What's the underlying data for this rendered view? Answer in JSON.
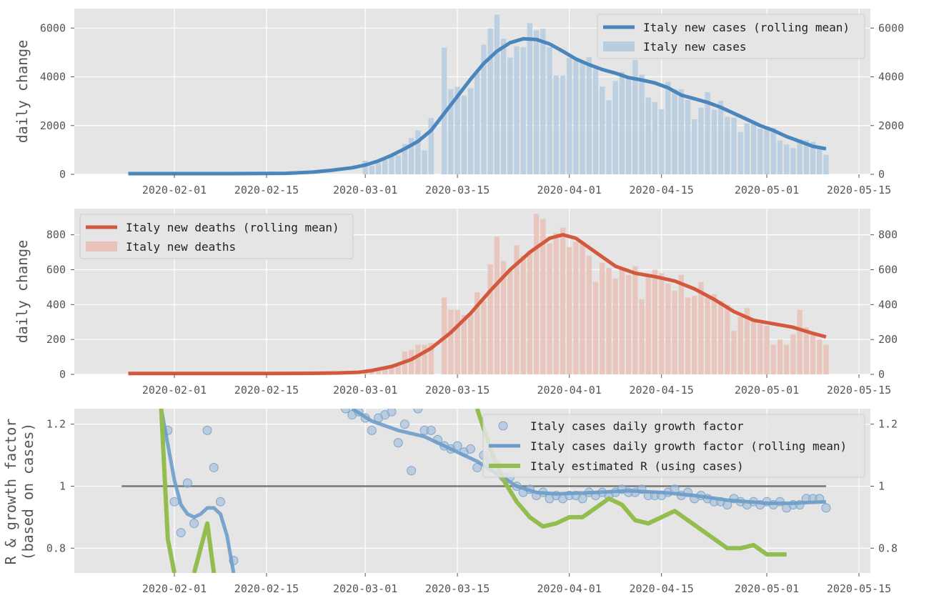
{
  "chart_data": [
    {
      "type": "bar",
      "ylabel": "daily change",
      "date_ticks": [
        "2020-02-01",
        "2020-02-15",
        "2020-03-01",
        "2020-03-15",
        "2020-04-01",
        "2020-04-15",
        "2020-05-01",
        "2020-05-15"
      ],
      "yticks": [
        0,
        2000,
        4000,
        6000
      ],
      "ylim": [
        0,
        6800
      ],
      "grid": true,
      "legend": "top-right",
      "colors": {
        "line": "#4a86bc",
        "bar": "#b8cde0"
      },
      "series": [
        {
          "name": "Italy new cases",
          "x": [
            "2020-03-01",
            "2020-03-02",
            "2020-03-03",
            "2020-03-04",
            "2020-03-05",
            "2020-03-06",
            "2020-03-07",
            "2020-03-08",
            "2020-03-09",
            "2020-03-10",
            "2020-03-11",
            "2020-03-12",
            "2020-03-13",
            "2020-03-14",
            "2020-03-15",
            "2020-03-16",
            "2020-03-17",
            "2020-03-18",
            "2020-03-19",
            "2020-03-20",
            "2020-03-21",
            "2020-03-22",
            "2020-03-23",
            "2020-03-24",
            "2020-03-25",
            "2020-03-26",
            "2020-03-27",
            "2020-03-28",
            "2020-03-29",
            "2020-03-30",
            "2020-03-31",
            "2020-04-01",
            "2020-04-02",
            "2020-04-03",
            "2020-04-04",
            "2020-04-05",
            "2020-04-06",
            "2020-04-07",
            "2020-04-08",
            "2020-04-09",
            "2020-04-10",
            "2020-04-11",
            "2020-04-12",
            "2020-04-13",
            "2020-04-14",
            "2020-04-15",
            "2020-04-16",
            "2020-04-17",
            "2020-04-18",
            "2020-04-19",
            "2020-04-20",
            "2020-04-21",
            "2020-04-22",
            "2020-04-23",
            "2020-04-24",
            "2020-04-25",
            "2020-04-26",
            "2020-04-27",
            "2020-04-28",
            "2020-04-29",
            "2020-04-30",
            "2020-05-01",
            "2020-05-02",
            "2020-05-03",
            "2020-05-04",
            "2020-05-05",
            "2020-05-06",
            "2020-05-07",
            "2020-05-08",
            "2020-05-09",
            "2020-05-10"
          ],
          "values": [
            560,
            350,
            470,
            590,
            770,
            780,
            1250,
            1490,
            1800,
            980,
            2310,
            0,
            5200,
            3500,
            3590,
            3230,
            3530,
            4200,
            5320,
            5990,
            6550,
            5570,
            4790,
            5250,
            5210,
            6200,
            5910,
            5970,
            5220,
            4050,
            4050,
            4780,
            4670,
            4580,
            4800,
            4320,
            3600,
            3040,
            3830,
            4200,
            3950,
            4690,
            4090,
            3150,
            2970,
            2670,
            3790,
            3490,
            3490,
            3050,
            2260,
            2730,
            3370,
            2650,
            3020,
            2360,
            2320,
            1740,
            2090,
            2090,
            1870,
            1970,
            1900,
            1390,
            1220,
            1080,
            1440,
            1400,
            1330,
            1080,
            800
          ]
        },
        {
          "name": "Italy new cases (rolling mean)",
          "x": [
            "2020-01-25",
            "2020-02-10",
            "2020-02-18",
            "2020-02-22",
            "2020-02-25",
            "2020-02-28",
            "2020-03-01",
            "2020-03-03",
            "2020-03-05",
            "2020-03-07",
            "2020-03-09",
            "2020-03-11",
            "2020-03-13",
            "2020-03-15",
            "2020-03-17",
            "2020-03-19",
            "2020-03-21",
            "2020-03-23",
            "2020-03-25",
            "2020-03-27",
            "2020-03-29",
            "2020-03-31",
            "2020-04-02",
            "2020-04-04",
            "2020-04-06",
            "2020-04-08",
            "2020-04-10",
            "2020-04-12",
            "2020-04-14",
            "2020-04-16",
            "2020-04-18",
            "2020-04-20",
            "2020-04-22",
            "2020-04-24",
            "2020-04-26",
            "2020-04-28",
            "2020-04-30",
            "2020-05-02",
            "2020-05-04",
            "2020-05-06",
            "2020-05-08",
            "2020-05-10"
          ],
          "values": [
            30,
            30,
            40,
            90,
            170,
            270,
            380,
            550,
            780,
            1050,
            1350,
            1800,
            2500,
            3200,
            3900,
            4550,
            5050,
            5400,
            5560,
            5530,
            5350,
            5050,
            4730,
            4500,
            4300,
            4150,
            3970,
            3870,
            3750,
            3550,
            3250,
            3100,
            2950,
            2750,
            2500,
            2250,
            2000,
            1800,
            1550,
            1350,
            1150,
            1050
          ]
        }
      ]
    },
    {
      "type": "bar",
      "ylabel": "daily change",
      "date_ticks": [
        "2020-02-01",
        "2020-02-15",
        "2020-03-01",
        "2020-03-15",
        "2020-04-01",
        "2020-04-15",
        "2020-05-01",
        "2020-05-15"
      ],
      "yticks": [
        0,
        200,
        400,
        600,
        800
      ],
      "ylim": [
        0,
        950
      ],
      "grid": true,
      "legend": "top-left",
      "colors": {
        "line": "#d2593d",
        "bar": "#e8c2b8"
      },
      "series": [
        {
          "name": "Italy new deaths",
          "x": [
            "2020-03-01",
            "2020-03-02",
            "2020-03-03",
            "2020-03-04",
            "2020-03-05",
            "2020-03-06",
            "2020-03-07",
            "2020-03-08",
            "2020-03-09",
            "2020-03-10",
            "2020-03-11",
            "2020-03-12",
            "2020-03-13",
            "2020-03-14",
            "2020-03-15",
            "2020-03-16",
            "2020-03-17",
            "2020-03-18",
            "2020-03-19",
            "2020-03-20",
            "2020-03-21",
            "2020-03-22",
            "2020-03-23",
            "2020-03-24",
            "2020-03-25",
            "2020-03-26",
            "2020-03-27",
            "2020-03-28",
            "2020-03-29",
            "2020-03-30",
            "2020-03-31",
            "2020-04-01",
            "2020-04-02",
            "2020-04-03",
            "2020-04-04",
            "2020-04-05",
            "2020-04-06",
            "2020-04-07",
            "2020-04-08",
            "2020-04-09",
            "2020-04-10",
            "2020-04-11",
            "2020-04-12",
            "2020-04-13",
            "2020-04-14",
            "2020-04-15",
            "2020-04-16",
            "2020-04-17",
            "2020-04-18",
            "2020-04-19",
            "2020-04-20",
            "2020-04-21",
            "2020-04-22",
            "2020-04-23",
            "2020-04-24",
            "2020-04-25",
            "2020-04-26",
            "2020-04-27",
            "2020-04-28",
            "2020-04-29",
            "2020-04-30",
            "2020-05-01",
            "2020-05-02",
            "2020-05-03",
            "2020-05-04",
            "2020-05-05",
            "2020-05-06",
            "2020-05-07",
            "2020-05-08",
            "2020-05-09",
            "2020-05-10"
          ],
          "values": [
            10,
            20,
            30,
            40,
            50,
            60,
            130,
            140,
            170,
            170,
            180,
            0,
            440,
            370,
            370,
            340,
            350,
            470,
            420,
            630,
            790,
            650,
            600,
            740,
            680,
            710,
            920,
            890,
            750,
            810,
            840,
            730,
            760,
            760,
            680,
            530,
            640,
            610,
            550,
            610,
            570,
            620,
            430,
            570,
            600,
            580,
            520,
            480,
            570,
            440,
            450,
            530,
            440,
            460,
            420,
            400,
            250,
            330,
            380,
            320,
            290,
            280,
            170,
            200,
            170,
            230,
            370,
            270,
            240,
            200,
            170
          ]
        },
        {
          "name": "Italy new deaths (rolling mean)",
          "x": [
            "2020-01-25",
            "2020-02-15",
            "2020-02-22",
            "2020-02-26",
            "2020-02-29",
            "2020-03-02",
            "2020-03-05",
            "2020-03-08",
            "2020-03-11",
            "2020-03-14",
            "2020-03-17",
            "2020-03-20",
            "2020-03-23",
            "2020-03-26",
            "2020-03-29",
            "2020-03-31",
            "2020-04-02",
            "2020-04-05",
            "2020-04-08",
            "2020-04-11",
            "2020-04-14",
            "2020-04-17",
            "2020-04-20",
            "2020-04-23",
            "2020-04-26",
            "2020-04-29",
            "2020-05-02",
            "2020-05-05",
            "2020-05-08",
            "2020-05-10"
          ],
          "values": [
            5,
            5,
            6,
            8,
            12,
            22,
            45,
            85,
            150,
            240,
            350,
            480,
            600,
            700,
            780,
            800,
            780,
            700,
            620,
            580,
            560,
            535,
            490,
            430,
            360,
            310,
            290,
            270,
            235,
            215
          ]
        }
      ]
    },
    {
      "type": "scatter",
      "ylabel": "R & growth factor (based on cases)",
      "ylabel_lines": [
        "R & growth factor",
        "(based on cases)"
      ],
      "date_ticks": [
        "2020-02-01",
        "2020-02-15",
        "2020-03-01",
        "2020-03-15",
        "2020-04-01",
        "2020-04-15",
        "2020-05-01",
        "2020-05-15"
      ],
      "yticks": [
        0.8,
        1.0,
        1.2
      ],
      "ylim": [
        0.72,
        1.25
      ],
      "reference_line": {
        "y": 1.0,
        "x": [
          "2020-01-24",
          "2020-05-10"
        ]
      },
      "grid": true,
      "legend": "top-right",
      "colors": {
        "dots": "#9dbad8",
        "line": "#6d9cc8",
        "r": "#93bd4f",
        "ref": "#777777"
      },
      "series": [
        {
          "name": "Italy cases daily growth factor",
          "x": [
            "2020-01-31",
            "2020-02-01",
            "2020-02-02",
            "2020-02-03",
            "2020-02-04",
            "2020-02-06",
            "2020-02-07",
            "2020-02-08",
            "2020-02-10",
            "2020-02-27",
            "2020-02-28",
            "2020-02-29",
            "2020-03-01",
            "2020-03-02",
            "2020-03-03",
            "2020-03-04",
            "2020-03-05",
            "2020-03-06",
            "2020-03-07",
            "2020-03-08",
            "2020-03-09",
            "2020-03-10",
            "2020-03-11",
            "2020-03-12",
            "2020-03-13",
            "2020-03-14",
            "2020-03-15",
            "2020-03-16",
            "2020-03-17",
            "2020-03-18",
            "2020-03-19",
            "2020-03-20",
            "2020-03-21",
            "2020-03-22",
            "2020-03-23",
            "2020-03-24",
            "2020-03-25",
            "2020-03-26",
            "2020-03-27",
            "2020-03-28",
            "2020-03-29",
            "2020-03-30",
            "2020-03-31",
            "2020-04-01",
            "2020-04-02",
            "2020-04-03",
            "2020-04-04",
            "2020-04-05",
            "2020-04-06",
            "2020-04-07",
            "2020-04-08",
            "2020-04-09",
            "2020-04-10",
            "2020-04-11",
            "2020-04-12",
            "2020-04-13",
            "2020-04-14",
            "2020-04-15",
            "2020-04-16",
            "2020-04-17",
            "2020-04-18",
            "2020-04-19",
            "2020-04-20",
            "2020-04-21",
            "2020-04-22",
            "2020-04-23",
            "2020-04-24",
            "2020-04-25",
            "2020-04-26",
            "2020-04-27",
            "2020-04-28",
            "2020-04-29",
            "2020-04-30",
            "2020-05-01",
            "2020-05-02",
            "2020-05-03",
            "2020-05-04",
            "2020-05-05",
            "2020-05-06",
            "2020-05-07",
            "2020-05-08",
            "2020-05-09",
            "2020-05-10"
          ],
          "values": [
            1.18,
            0.95,
            0.85,
            1.01,
            0.88,
            1.18,
            1.06,
            0.95,
            0.76,
            1.25,
            1.23,
            1.24,
            1.22,
            1.18,
            1.22,
            1.23,
            1.24,
            1.14,
            1.2,
            1.05,
            1.25,
            1.18,
            1.18,
            1.15,
            1.13,
            1.12,
            1.13,
            1.11,
            1.12,
            1.06,
            1.1,
            1.08,
            1.07,
            1.03,
            1.03,
            1.0,
            0.98,
            0.99,
            0.97,
            0.98,
            0.96,
            0.97,
            0.96,
            0.97,
            0.97,
            0.96,
            0.98,
            0.97,
            0.98,
            0.97,
            0.98,
            0.99,
            0.98,
            0.98,
            0.99,
            0.97,
            0.97,
            0.97,
            0.98,
            0.99,
            0.97,
            0.98,
            0.96,
            0.97,
            0.96,
            0.95,
            0.95,
            0.94,
            0.96,
            0.95,
            0.94,
            0.95,
            0.94,
            0.95,
            0.94,
            0.95,
            0.93,
            0.94,
            0.94,
            0.96,
            0.96,
            0.96,
            0.93
          ]
        },
        {
          "name": "Italy cases daily growth factor (rolling mean)",
          "x": [
            "2020-01-30",
            "2020-02-01",
            "2020-02-02",
            "2020-02-03",
            "2020-02-04",
            "2020-02-05",
            "2020-02-06",
            "2020-02-07",
            "2020-02-08",
            "2020-02-09",
            "2020-02-10",
            "2020-02-28",
            "2020-03-02",
            "2020-03-06",
            "2020-03-10",
            "2020-03-14",
            "2020-03-18",
            "2020-03-21",
            "2020-03-24",
            "2020-03-27",
            "2020-03-30",
            "2020-04-05",
            "2020-04-10",
            "2020-04-15",
            "2020-04-20",
            "2020-04-25",
            "2020-05-01",
            "2020-05-05",
            "2020-05-10"
          ],
          "values": [
            1.25,
            1.02,
            0.94,
            0.91,
            0.9,
            0.91,
            0.93,
            0.93,
            0.91,
            0.84,
            0.72,
            1.25,
            1.21,
            1.18,
            1.16,
            1.12,
            1.08,
            1.04,
            1.0,
            0.98,
            0.975,
            0.98,
            0.985,
            0.98,
            0.97,
            0.955,
            0.945,
            0.945,
            0.95
          ]
        },
        {
          "name": "Italy estimated R (using cases)",
          "x": [
            "2020-01-30",
            "2020-01-31",
            "2020-02-01",
            "2020-02-04",
            "2020-02-05",
            "2020-02-06",
            "2020-02-07",
            "2020-03-18",
            "2020-03-20",
            "2020-03-22",
            "2020-03-24",
            "2020-03-26",
            "2020-03-28",
            "2020-03-30",
            "2020-04-01",
            "2020-04-03",
            "2020-04-05",
            "2020-04-07",
            "2020-04-09",
            "2020-04-11",
            "2020-04-13",
            "2020-04-15",
            "2020-04-17",
            "2020-04-19",
            "2020-04-21",
            "2020-04-23",
            "2020-04-25",
            "2020-04-27",
            "2020-04-29",
            "2020-05-01",
            "2020-05-04"
          ],
          "values": [
            1.25,
            0.83,
            0.72,
            0.72,
            0.8,
            0.88,
            0.72,
            1.25,
            1.12,
            1.02,
            0.95,
            0.9,
            0.87,
            0.88,
            0.9,
            0.9,
            0.93,
            0.96,
            0.94,
            0.89,
            0.88,
            0.9,
            0.92,
            0.89,
            0.86,
            0.83,
            0.8,
            0.8,
            0.81,
            0.78,
            0.78
          ]
        }
      ]
    }
  ]
}
